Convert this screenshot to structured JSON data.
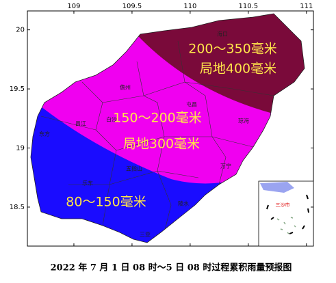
{
  "map": {
    "xlim": [
      108.6,
      111.06
    ],
    "ylim": [
      18.17,
      20.16
    ],
    "xticks": [
      109,
      109.5,
      110,
      110.5,
      111
    ],
    "yticks": [
      20,
      19.5,
      19,
      18.5
    ],
    "zones": [
      {
        "range": "200～350毫米",
        "local": "局地400毫米"
      },
      {
        "range": "150～200毫米",
        "local": "局地300毫米"
      },
      {
        "range": "80～150毫米"
      }
    ],
    "cities": [
      "海口",
      "儋州",
      "屯昌",
      "琼海",
      "白沙",
      "昌江",
      "东方",
      "五指山",
      "万宁",
      "乐东",
      "陵水",
      "三亚"
    ],
    "inset_label": "三沙市",
    "caption": "2022 年 7 月 1 日 08 时～5 日 08 时过程累积雨量预报图"
  }
}
